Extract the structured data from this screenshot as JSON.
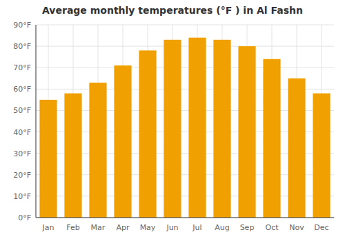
{
  "chart_data": {
    "type": "bar",
    "title": "Average monthly temperatures (°F ) in Al Fashn",
    "categories": [
      "Jan",
      "Feb",
      "Mar",
      "Apr",
      "May",
      "Jun",
      "Jul",
      "Aug",
      "Sep",
      "Oct",
      "Nov",
      "Dec"
    ],
    "values": [
      55,
      58,
      63,
      71,
      78,
      83,
      84,
      83,
      80,
      74,
      65,
      58
    ],
    "color": "#F0A000",
    "ylim": [
      0,
      90
    ],
    "yticks": [
      {
        "value": 0,
        "label": "0°F"
      },
      {
        "value": 10,
        "label": "10°F"
      },
      {
        "value": 20,
        "label": "20°F"
      },
      {
        "value": 30,
        "label": "30°F"
      },
      {
        "value": 40,
        "label": "40°F"
      },
      {
        "value": 50,
        "label": "50°F"
      },
      {
        "value": 60,
        "label": "60°F"
      },
      {
        "value": 70,
        "label": "70°F"
      },
      {
        "value": 80,
        "label": "80°F"
      },
      {
        "value": 90,
        "label": "90°F"
      }
    ],
    "grid": true
  }
}
